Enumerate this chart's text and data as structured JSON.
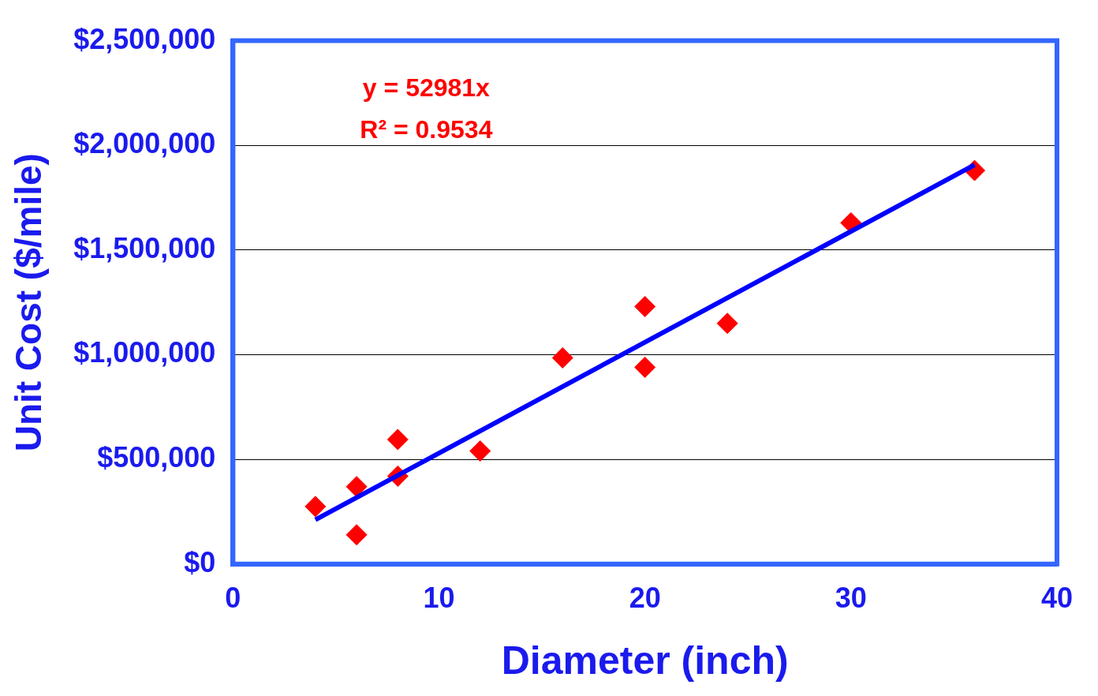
{
  "chart_data": {
    "type": "scatter",
    "xlabel": "Diameter (inch)",
    "ylabel": "Unit Cost ($/mile)",
    "xlim": [
      0,
      40
    ],
    "xticks": [
      0,
      10,
      20,
      30,
      40
    ],
    "ylim": [
      0,
      2500000
    ],
    "yticks": [
      {
        "value": 0,
        "label": "$0"
      },
      {
        "value": 500000,
        "label": "$500,000"
      },
      {
        "value": 1000000,
        "label": "$1,000,000"
      },
      {
        "value": 1500000,
        "label": "$1,500,000"
      },
      {
        "value": 2000000,
        "label": "$2,000,000"
      },
      {
        "value": 2500000,
        "label": "$2,500,000"
      }
    ],
    "grid": "y",
    "legend": false,
    "annotations": [
      "y = 52981x",
      "R² = 0.9534"
    ],
    "series": [
      {
        "type": "scatter",
        "color": "#ff0000",
        "marker": "diamond",
        "x": [
          4,
          6,
          6,
          8,
          8,
          12,
          16,
          20,
          20,
          24,
          30,
          36
        ],
        "values": [
          275000,
          370000,
          140000,
          595000,
          420000,
          540000,
          985000,
          1230000,
          940000,
          1150000,
          1630000,
          1880000
        ]
      },
      {
        "type": "line",
        "color": "#0000ff",
        "marker": "none",
        "x": [
          4,
          36
        ],
        "values": [
          212000,
          1907000
        ]
      }
    ]
  }
}
